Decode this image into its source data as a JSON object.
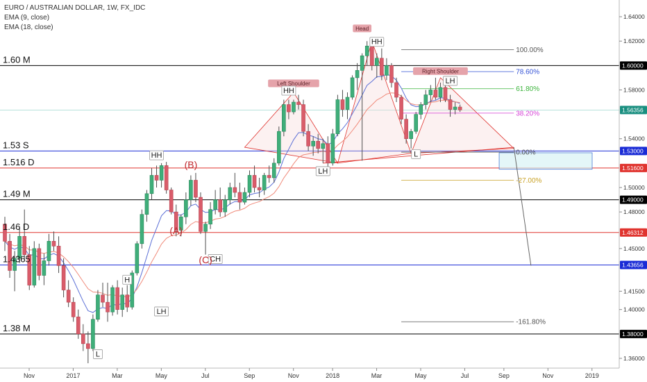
{
  "header": {
    "symbol_line": "EURO / AUSTRALIAN DOLLAR, 1W, FX_IDC",
    "ema1": "EMA (9, close)",
    "ema2": "EMA (18, close)"
  },
  "chart_data": {
    "type": "candlestick",
    "symbol": "EURO / AUSTRALIAN DOLLAR",
    "timeframe": "1W",
    "source": "FX_IDC",
    "indicators": [
      {
        "name": "EMA (9, close)",
        "color": "#5b6fd6"
      },
      {
        "name": "EMA (18, close)",
        "color": "#f08a7a"
      }
    ],
    "ylim": [
      1.352,
      1.652
    ],
    "y_ticks": [
      1.64,
      1.62,
      1.6,
      1.58,
      1.56,
      1.54,
      1.52,
      1.5,
      1.48,
      1.46,
      1.44,
      1.42,
      1.4,
      1.38,
      1.36
    ],
    "y_tick_labels": [
      "1.64000",
      "1.62000",
      "1.60000",
      "1.58000",
      "1.56356",
      "1.54000",
      "1.53000",
      "1.51600",
      "1.50000",
      "1.49000",
      "1.48000",
      "1.46312",
      "1.45000",
      "1.43656",
      "1.41500",
      "1.40000",
      "1.38000",
      "1.36000"
    ],
    "y_tick_labels_plain": [
      "1.64000",
      "1.62000",
      "1.58000",
      "1.54000",
      "1.50000",
      "1.48000",
      "1.45000",
      "1.41500",
      "1.40000",
      "1.36000"
    ],
    "x_ticks": [
      {
        "label": "Nov",
        "week": 0
      },
      {
        "label": "2017",
        "week": 9
      },
      {
        "label": "Mar",
        "week": 18
      },
      {
        "label": "May",
        "week": 27
      },
      {
        "label": "Jul",
        "week": 36
      },
      {
        "label": "Sep",
        "week": 45
      },
      {
        "label": "Nov",
        "week": 54
      },
      {
        "label": "2018",
        "week": 62
      },
      {
        "label": "Mar",
        "week": 71
      },
      {
        "label": "May",
        "week": 80
      },
      {
        "label": "Jul",
        "week": 89
      },
      {
        "label": "Sep",
        "week": 97
      },
      {
        "label": "Nov",
        "week": 106
      },
      {
        "label": "2019",
        "week": 115
      }
    ],
    "candles": [
      [
        1.47,
        1.476,
        1.448,
        1.456
      ],
      [
        1.456,
        1.462,
        1.426,
        1.432
      ],
      [
        1.432,
        1.448,
        1.415,
        1.442
      ],
      [
        1.442,
        1.468,
        1.438,
        1.46
      ],
      [
        1.46,
        1.482,
        1.44,
        1.445
      ],
      [
        1.445,
        1.452,
        1.416,
        1.42
      ],
      [
        1.42,
        1.456,
        1.418,
        1.45
      ],
      [
        1.45,
        1.454,
        1.424,
        1.428
      ],
      [
        1.428,
        1.446,
        1.42,
        1.44
      ],
      [
        1.44,
        1.462,
        1.436,
        1.456
      ],
      [
        1.456,
        1.464,
        1.448,
        1.452
      ],
      [
        1.452,
        1.46,
        1.43,
        1.436
      ],
      [
        1.436,
        1.442,
        1.41,
        1.416
      ],
      [
        1.416,
        1.424,
        1.402,
        1.406
      ],
      [
        1.406,
        1.41,
        1.39,
        1.394
      ],
      [
        1.394,
        1.4,
        1.376,
        1.38
      ],
      [
        1.38,
        1.388,
        1.366,
        1.372
      ],
      [
        1.372,
        1.382,
        1.356,
        1.368
      ],
      [
        1.368,
        1.396,
        1.366,
        1.392
      ],
      [
        1.392,
        1.416,
        1.39,
        1.412
      ],
      [
        1.412,
        1.422,
        1.402,
        1.406
      ],
      [
        1.406,
        1.422,
        1.39,
        1.398
      ],
      [
        1.398,
        1.42,
        1.395,
        1.418
      ],
      [
        1.418,
        1.424,
        1.396,
        1.4
      ],
      [
        1.4,
        1.418,
        1.394,
        1.412
      ],
      [
        1.412,
        1.42,
        1.398,
        1.402
      ],
      [
        1.402,
        1.432,
        1.4,
        1.43
      ],
      [
        1.43,
        1.456,
        1.428,
        1.454
      ],
      [
        1.454,
        1.482,
        1.45,
        1.478
      ],
      [
        1.478,
        1.498,
        1.472,
        1.495
      ],
      [
        1.495,
        1.516,
        1.49,
        1.51
      ],
      [
        1.51,
        1.518,
        1.5,
        1.506
      ],
      [
        1.506,
        1.52,
        1.5,
        1.518
      ],
      [
        1.518,
        1.521,
        1.495,
        1.498
      ],
      [
        1.498,
        1.5,
        1.478,
        1.48
      ],
      [
        1.48,
        1.486,
        1.46,
        1.465
      ],
      [
        1.465,
        1.478,
        1.46,
        1.476
      ],
      [
        1.476,
        1.496,
        1.47,
        1.49
      ],
      [
        1.49,
        1.51,
        1.485,
        1.506
      ],
      [
        1.506,
        1.512,
        1.488,
        1.492
      ],
      [
        1.492,
        1.496,
        1.462,
        1.464
      ],
      [
        1.464,
        1.472,
        1.445,
        1.47
      ],
      [
        1.47,
        1.488,
        1.466,
        1.482
      ],
      [
        1.482,
        1.498,
        1.478,
        1.49
      ],
      [
        1.49,
        1.5,
        1.476,
        1.48
      ],
      [
        1.48,
        1.494,
        1.476,
        1.49
      ],
      [
        1.49,
        1.504,
        1.486,
        1.5
      ],
      [
        1.5,
        1.512,
        1.492,
        1.496
      ],
      [
        1.496,
        1.504,
        1.482,
        1.488
      ],
      [
        1.488,
        1.5,
        1.486,
        1.496
      ],
      [
        1.496,
        1.514,
        1.492,
        1.51
      ],
      [
        1.51,
        1.518,
        1.496,
        1.5
      ],
      [
        1.5,
        1.508,
        1.492,
        1.498
      ],
      [
        1.498,
        1.512,
        1.494,
        1.51
      ],
      [
        1.51,
        1.518,
        1.504,
        1.508
      ],
      [
        1.508,
        1.524,
        1.504,
        1.52
      ],
      [
        1.52,
        1.55,
        1.518,
        1.546
      ],
      [
        1.546,
        1.572,
        1.542,
        1.568
      ],
      [
        1.568,
        1.572,
        1.556,
        1.562
      ],
      [
        1.562,
        1.572,
        1.56,
        1.57
      ],
      [
        1.57,
        1.576,
        1.564,
        1.568
      ],
      [
        1.568,
        1.572,
        1.542,
        1.546
      ],
      [
        1.546,
        1.552,
        1.53,
        1.534
      ],
      [
        1.534,
        1.542,
        1.526,
        1.538
      ],
      [
        1.538,
        1.544,
        1.528,
        1.532
      ],
      [
        1.532,
        1.54,
        1.52,
        1.536
      ],
      [
        1.536,
        1.542,
        1.516,
        1.52
      ],
      [
        1.52,
        1.548,
        1.518,
        1.544
      ],
      [
        1.544,
        1.576,
        1.542,
        1.572
      ],
      [
        1.572,
        1.58,
        1.558,
        1.564
      ],
      [
        1.564,
        1.578,
        1.556,
        1.574
      ],
      [
        1.574,
        1.592,
        1.572,
        1.59
      ],
      [
        1.59,
        1.602,
        1.58,
        1.596
      ],
      [
        1.596,
        1.61,
        1.522,
        1.608
      ],
      [
        1.608,
        1.62,
        1.6,
        1.616
      ],
      [
        1.616,
        1.618,
        1.596,
        1.6
      ],
      [
        1.6,
        1.61,
        1.59,
        1.606
      ],
      [
        1.606,
        1.614,
        1.588,
        1.592
      ],
      [
        1.592,
        1.606,
        1.588,
        1.6
      ],
      [
        1.6,
        1.602,
        1.582,
        1.586
      ],
      [
        1.586,
        1.59,
        1.57,
        1.574
      ],
      [
        1.574,
        1.576,
        1.552,
        1.556
      ],
      [
        1.556,
        1.56,
        1.536,
        1.54
      ],
      [
        1.54,
        1.548,
        1.532,
        1.546
      ],
      [
        1.546,
        1.562,
        1.544,
        1.56
      ],
      [
        1.56,
        1.57,
        1.556,
        1.568
      ],
      [
        1.568,
        1.58,
        1.564,
        1.576
      ],
      [
        1.576,
        1.584,
        1.57,
        1.58
      ],
      [
        1.58,
        1.59,
        1.572,
        1.574
      ],
      [
        1.574,
        1.586,
        1.57,
        1.582
      ],
      [
        1.582,
        1.588,
        1.57,
        1.572
      ],
      [
        1.572,
        1.576,
        1.558,
        1.564
      ],
      [
        1.564,
        1.57,
        1.56,
        1.566
      ],
      [
        1.566,
        1.568,
        1.562,
        1.5636
      ]
    ],
    "levels": [
      {
        "label": "1.60 M",
        "price": 1.6,
        "color": "#000000",
        "badge": "1.60000"
      },
      {
        "label": "1.53 S",
        "price": 1.53,
        "color": "#1a2bd6",
        "badge": "1.53000"
      },
      {
        "label": "1.516 D",
        "price": 1.516,
        "color": "#e0342f",
        "badge": "1.51600"
      },
      {
        "label": "1.49 M",
        "price": 1.49,
        "color": "#000000",
        "badge": "1.49000"
      },
      {
        "label": "1.46 D",
        "price": 1.46312,
        "color": "#e0342f",
        "badge": "1.46312"
      },
      {
        "label": "1.4365",
        "price": 1.43656,
        "color": "#1a2bd6",
        "badge": "1.43656"
      },
      {
        "label": "1.38 M",
        "price": 1.38,
        "color": "#000000",
        "badge": "1.38000"
      }
    ],
    "current_price": {
      "label": "1.56356",
      "price": 1.56356,
      "color": "#1a8f80"
    },
    "fib_levels": [
      {
        "label": "100.00%",
        "price": 1.613,
        "color": "#555555"
      },
      {
        "label": "78.60%",
        "price": 1.595,
        "color": "#3553d6"
      },
      {
        "label": "61.80%",
        "price": 1.581,
        "color": "#3ab33a"
      },
      {
        "label": "38.20%",
        "price": 1.561,
        "color": "#d63fd6"
      },
      {
        "label": "0.00%",
        "price": 1.529,
        "color": "#555555"
      },
      {
        "label": "-27.00%",
        "price": 1.506,
        "color": "#c9a227"
      },
      {
        "label": "-161.80%",
        "price": 1.39,
        "color": "#555555"
      }
    ],
    "pattern_labels": [
      {
        "text": "Head",
        "week": 73,
        "price": 1.629,
        "type": "badge"
      },
      {
        "text": "Left Shoulder",
        "week": 59,
        "price": 1.584,
        "type": "badge"
      },
      {
        "text": "Right Shoulder",
        "week": 89,
        "price": 1.594,
        "type": "badge"
      }
    ],
    "swing_labels": [
      {
        "text": "HH",
        "week": 76,
        "price": 1.618
      },
      {
        "text": "HH",
        "week": 58,
        "price": 1.578
      },
      {
        "text": "LH",
        "week": 91,
        "price": 1.586
      },
      {
        "text": "LH",
        "week": 65,
        "price": 1.512
      },
      {
        "text": "L",
        "week": 84,
        "price": 1.526
      },
      {
        "text": "HH",
        "week": 31,
        "price": 1.525
      },
      {
        "text": "H",
        "week": 25,
        "price": 1.423
      },
      {
        "text": "LH",
        "week": 32,
        "price": 1.397
      },
      {
        "text": "CH",
        "week": 43,
        "price": 1.44
      },
      {
        "text": "L",
        "week": 19,
        "price": 1.362
      }
    ],
    "wave_labels": [
      {
        "text": "(B)",
        "week": 38,
        "price": 1.516
      },
      {
        "text": "(A)",
        "week": 35,
        "price": 1.462
      },
      {
        "text": "(C)",
        "week": 41,
        "price": 1.438
      }
    ]
  }
}
